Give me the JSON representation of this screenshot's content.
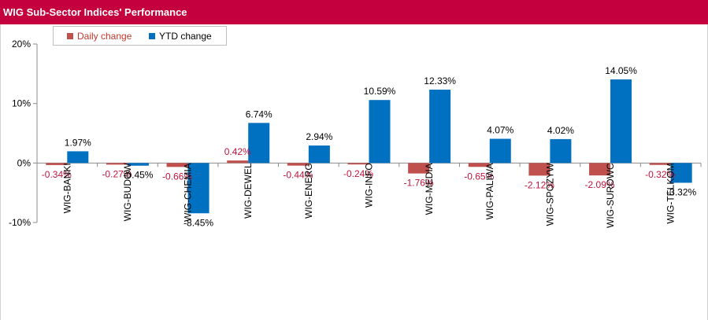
{
  "chart_data": {
    "type": "bar",
    "title": "WIG Sub-Sector Indices' Performance",
    "categories": [
      "WIG-BANKI",
      "WIG-BUDOW",
      "WIG-CHEMIA",
      "WIG-DEWEL",
      "WIG-ENERG",
      "WIG-INFO",
      "WIG-MEDIA",
      "WIG-PALIWA",
      "WIG-SPOZYW",
      "WIG-SUROWC",
      "WIG-TELKOM"
    ],
    "series": [
      {
        "name": "Daily change",
        "color": "#c0504d",
        "label_color": "#c0143c",
        "values": [
          -0.34,
          -0.27,
          -0.66,
          0.42,
          -0.44,
          -0.24,
          -1.76,
          -0.65,
          -2.12,
          -2.09,
          -0.32
        ],
        "labels": [
          "-0.34%",
          "-0.27%",
          "-0.66%",
          "0.42%",
          "-0.44%",
          "-0.24%",
          "-1.76%",
          "-0.65%",
          "-2.12%",
          "-2.09%",
          "-0.32%"
        ]
      },
      {
        "name": "YTD change",
        "color": "#0070c0",
        "label_color": "#000000",
        "values": [
          1.97,
          -0.45,
          -8.45,
          6.74,
          2.94,
          10.59,
          12.33,
          4.07,
          4.02,
          14.05,
          -3.32
        ],
        "labels": [
          "1.97%",
          "-0.45%",
          "-8.45%",
          "6.74%",
          "2.94%",
          "10.59%",
          "12.33%",
          "4.07%",
          "4.02%",
          "14.05%",
          "-3.32%"
        ]
      }
    ],
    "yticks": [
      20,
      10,
      0,
      -10
    ],
    "ytick_labels": [
      "20%",
      "10%",
      "0%",
      "-10%"
    ],
    "ylim": [
      -10,
      20
    ],
    "xlabel": "",
    "ylabel": "",
    "legend": "top-left",
    "grid": false
  }
}
